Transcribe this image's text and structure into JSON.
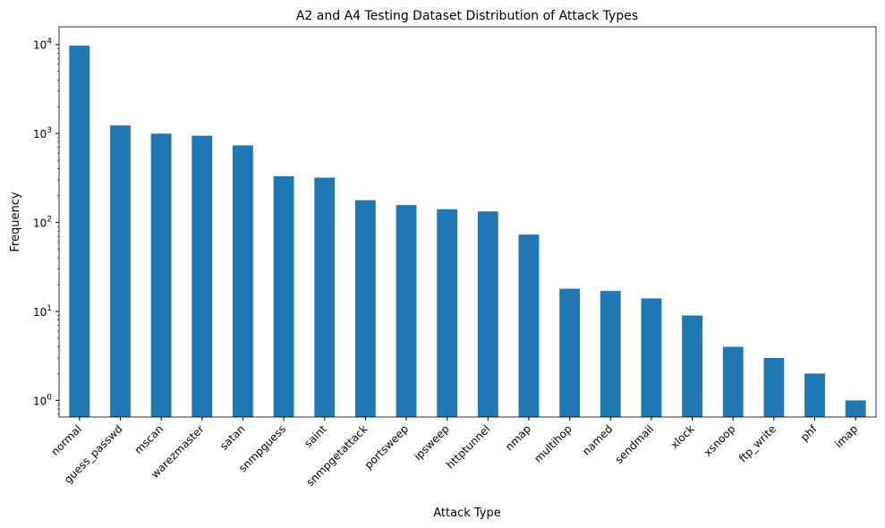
{
  "chart_data": {
    "type": "bar",
    "title": "A2 and A4 Testing Dataset Distribution of Attack Types",
    "xlabel": "Attack Type",
    "ylabel": "Frequency",
    "yscale": "log",
    "ylim": [
      0.65,
      15800
    ],
    "yticks": [
      1,
      10,
      100,
      1000,
      10000
    ],
    "ytick_labels": [
      {
        "base": "10",
        "exp": "0"
      },
      {
        "base": "10",
        "exp": "1"
      },
      {
        "base": "10",
        "exp": "2"
      },
      {
        "base": "10",
        "exp": "3"
      },
      {
        "base": "10",
        "exp": "4"
      }
    ],
    "categories": [
      "normal",
      "guess_passwd",
      "mscan",
      "warezmaster",
      "satan",
      "snmpguess",
      "saint",
      "snmpgetattack",
      "portsweep",
      "ipsweep",
      "httptunnel",
      "nmap",
      "multihop",
      "named",
      "sendmail",
      "xlock",
      "xsnoop",
      "ftp_write",
      "phf",
      "imap"
    ],
    "values": [
      9711,
      1231,
      996,
      944,
      735,
      331,
      319,
      178,
      157,
      141,
      133,
      73,
      18,
      17,
      14,
      9,
      4,
      3,
      2,
      1
    ],
    "bar_color": "#1f77b4",
    "grid": false,
    "legend": "none"
  }
}
